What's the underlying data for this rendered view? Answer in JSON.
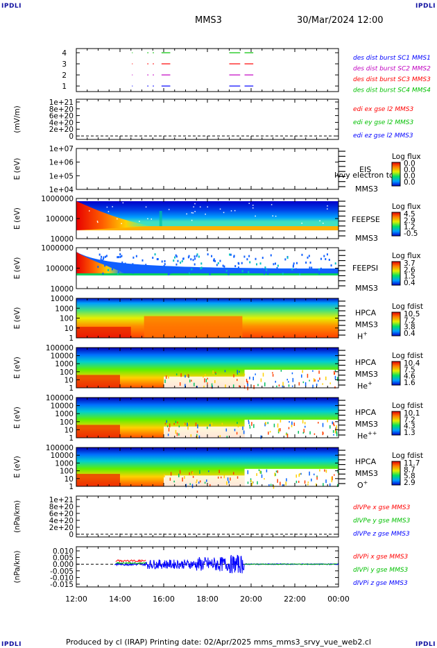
{
  "corners": {
    "tl": "IPDLI",
    "tr": "IPDLI",
    "bl": "IPDLI",
    "br": "IPDLI"
  },
  "header": {
    "mission": "MMS3",
    "datetime": "30/Mar/2024 12:00"
  },
  "footer": {
    "text": "Produced by cl (IRAP)   Printing date: 02/Apr/2025   mms_mms3_srvy_vue_web2.cl"
  },
  "colors": {
    "mms1": "#0000ff",
    "mms2": "#c000c0",
    "mms3": "#ff0000",
    "mms4": "#00c000",
    "x": "#ff0000",
    "y": "#00c000",
    "z": "#0000ff"
  },
  "chart_data": [
    {
      "type": "scatter",
      "id": "burst",
      "xrange": [
        "12:00",
        "00:00"
      ],
      "ylim": [
        0.5,
        4.5
      ],
      "yticks": [
        "1",
        "2",
        "3",
        "4"
      ],
      "legend": [
        {
          "text": "des dist burst SC1 MMS1",
          "color": "#0000ff"
        },
        {
          "text": "des dist burst SC2 MMS2",
          "color": "#c000c0"
        },
        {
          "text": "des dist burst SC3 MMS3",
          "color": "#ff0000"
        },
        {
          "text": "des dist burst SC4 MMS4",
          "color": "#00c000"
        }
      ],
      "segments": [
        {
          "start_h": 14.55,
          "end_h": 14.58
        },
        {
          "start_h": 15.25,
          "end_h": 15.3
        },
        {
          "start_h": 15.5,
          "end_h": 15.55
        },
        {
          "start_h": 15.9,
          "end_h": 16.3
        },
        {
          "start_h": 19.0,
          "end_h": 19.5
        },
        {
          "start_h": 19.7,
          "end_h": 20.1
        }
      ]
    },
    {
      "type": "line",
      "id": "edi",
      "ylabel": "(mV/m)",
      "yticks": [
        "1e+21",
        "8e+20",
        "6e+20",
        "4e+20",
        "2e+20",
        "0"
      ],
      "legend": [
        {
          "text": "edi ex gse l2 MMS3",
          "color": "#ff0000"
        },
        {
          "text": "edi ey gse l2 MMS3",
          "color": "#00c000"
        },
        {
          "text": "edi ez gse l2 MMS3",
          "color": "#0000ff"
        }
      ]
    },
    {
      "type": "heatmap",
      "id": "eis",
      "ylabel": "E (eV)",
      "yticks": [
        "1e+07",
        "1e+06",
        "1e+05",
        "1e+04"
      ],
      "instrument": "EIS",
      "overlay": "Ivvy electron to",
      "sc": "MMS3",
      "cbar_title": "Log flux",
      "cbar_ticks": [
        "0.0",
        "0.0",
        "0.0",
        "0.0"
      ]
    },
    {
      "type": "heatmap",
      "id": "feepse",
      "ylabel": "E (eV)",
      "yticks": [
        "1000000",
        "100000",
        "10000"
      ],
      "instrument": "FEEPSE",
      "sc": "MMS3",
      "cbar_title": "Log flux",
      "cbar_ticks": [
        "4.5",
        "2.9",
        "1.2",
        "-0.5"
      ]
    },
    {
      "type": "heatmap",
      "id": "feepsi",
      "ylabel": "E (eV)",
      "yticks": [
        "1000000",
        "100000",
        "10000"
      ],
      "instrument": "FEEPSI",
      "sc": "MMS3",
      "cbar_title": "Log flux",
      "cbar_ticks": [
        "3.7",
        "2.6",
        "1.5",
        "0.4"
      ]
    },
    {
      "type": "heatmap",
      "id": "hpca-h",
      "ylabel": "E (eV)",
      "yticks": [
        "10000",
        "1000",
        "100",
        "10",
        "1"
      ],
      "instrument": "HPCA",
      "sc": "MMS3",
      "species": "H",
      "charge": "+",
      "cbar_title": "Log fdist",
      "cbar_ticks": [
        "10.5",
        "7.2",
        "3.8",
        "0.4"
      ]
    },
    {
      "type": "heatmap",
      "id": "hpca-he",
      "ylabel": "E (eV)",
      "yticks": [
        "100000",
        "10000",
        "1000",
        "100",
        "10",
        "1"
      ],
      "instrument": "HPCA",
      "sc": "MMS3",
      "species": "He",
      "charge": "+",
      "cbar_title": "Log fdist",
      "cbar_ticks": [
        "10.4",
        "7.5",
        "4.6",
        "1.6"
      ]
    },
    {
      "type": "heatmap",
      "id": "hpca-hepp",
      "ylabel": "E (eV)",
      "yticks": [
        "100000",
        "10000",
        "1000",
        "100",
        "10",
        "1"
      ],
      "instrument": "HPCA",
      "sc": "MMS3",
      "species": "He",
      "charge": "++",
      "cbar_title": "Log fdist",
      "cbar_ticks": [
        "10.1",
        "7.2",
        "4.3",
        "1.3"
      ]
    },
    {
      "type": "heatmap",
      "id": "hpca-o",
      "ylabel": "E (eV)",
      "yticks": [
        "100000",
        "10000",
        "1000",
        "100",
        "10",
        "1"
      ],
      "instrument": "HPCA",
      "sc": "MMS3",
      "species": "O",
      "charge": "+",
      "cbar_title": "Log fdist",
      "cbar_ticks": [
        "11.7",
        "8.7",
        "5.8",
        "2.9"
      ]
    },
    {
      "type": "line",
      "id": "divpe",
      "ylabel": "(nPa/km)",
      "yticks": [
        "1e+21",
        "8e+20",
        "6e+20",
        "4e+20",
        "2e+20",
        "0"
      ],
      "legend": [
        {
          "text": "dIVPe x gse MMS3",
          "color": "#ff0000"
        },
        {
          "text": "dIVPe y gse MMS3",
          "color": "#00c000"
        },
        {
          "text": "dIVPe z gse MMS3",
          "color": "#0000ff"
        }
      ]
    },
    {
      "type": "line",
      "id": "divpi",
      "ylabel": "(nPa/km)",
      "ylim": [
        -0.015,
        0.01
      ],
      "yticks": [
        "0.010",
        "0.005",
        "0.000",
        "-0.005",
        "-0.010",
        "-0.015"
      ],
      "legend": [
        {
          "text": "dIVPi x gse MMS3",
          "color": "#ff0000"
        },
        {
          "text": "dIVPi y gse MMS3",
          "color": "#00c000"
        },
        {
          "text": "dIVPi z gse MMS3",
          "color": "#0000ff"
        }
      ]
    }
  ],
  "xaxis": {
    "ticks": [
      "12:00",
      "14:00",
      "16:00",
      "18:00",
      "20:00",
      "22:00",
      "00:00"
    ]
  }
}
